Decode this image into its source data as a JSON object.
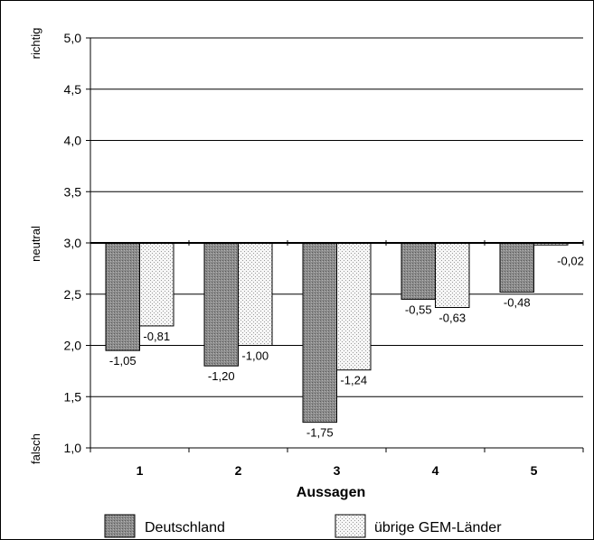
{
  "chart_data": {
    "type": "bar",
    "categories": [
      "1",
      "2",
      "3",
      "4",
      "5"
    ],
    "series": [
      {
        "name": "Deutschland",
        "values": [
          1.95,
          1.8,
          1.25,
          2.45,
          2.52
        ],
        "labels": [
          "-1,05",
          "-1,20",
          "-1,75",
          "-0,55",
          "-0,48"
        ],
        "color": "#8a8a8a"
      },
      {
        "name": "übrige GEM-Länder",
        "values": [
          2.19,
          2.0,
          1.76,
          2.37,
          2.98
        ],
        "labels": [
          "-0,81",
          "-1,00",
          "-1,24",
          "-0,63",
          "-0,02"
        ],
        "color": "#e6e6e6"
      }
    ],
    "baseline": 3.0,
    "ylim": [
      1.0,
      5.0
    ],
    "yticks": [
      "1,0",
      "1,5",
      "2,0",
      "2,5",
      "3,0",
      "3,5",
      "4,0",
      "4,5",
      "5,0"
    ],
    "ytick_values": [
      1.0,
      1.5,
      2.0,
      2.5,
      3.0,
      3.5,
      4.0,
      4.5,
      5.0
    ],
    "xlabel": "Aussagen",
    "side_labels": {
      "top": "richtig",
      "middle": "neutral",
      "bottom": "falsch"
    },
    "grid": true,
    "legend_position": "bottom"
  }
}
